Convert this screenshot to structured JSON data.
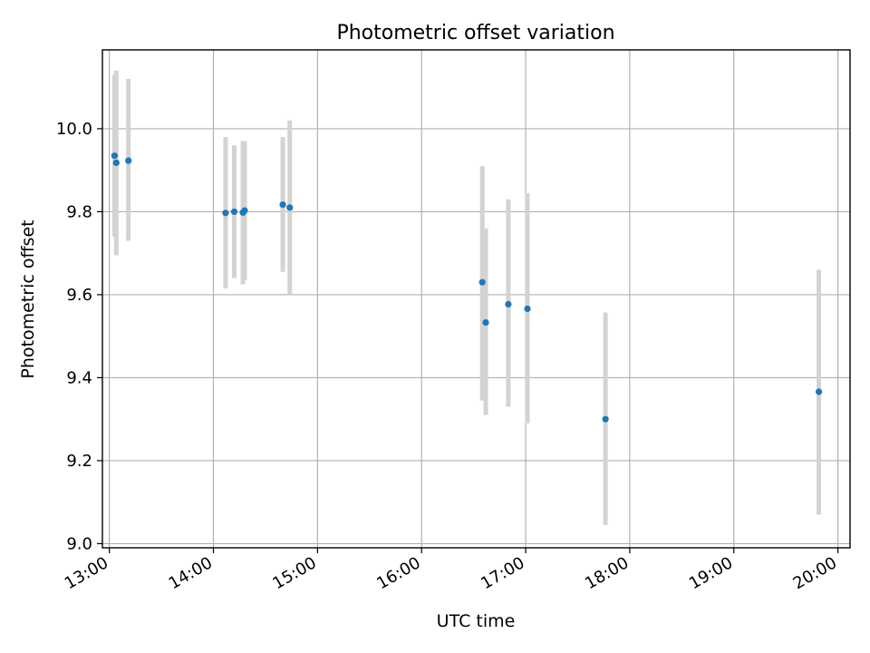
{
  "chart_data": {
    "type": "scatter",
    "title": "Photometric offset variation",
    "xlabel": "UTC time",
    "ylabel": "Photometric offset",
    "x_unit": "hours (UTC)",
    "xlim": [
      "12:56",
      "20:07"
    ],
    "ylim": [
      8.99,
      10.19
    ],
    "grid": true,
    "marker_color": "#1f77b4",
    "errorbar_color": "#d3d3d3",
    "x_ticks": [
      "13:00",
      "14:00",
      "15:00",
      "16:00",
      "17:00",
      "18:00",
      "19:00",
      "20:00"
    ],
    "y_ticks": [
      9.0,
      9.2,
      9.4,
      9.6,
      9.8,
      10.0
    ],
    "y_tick_labels": [
      "9.0",
      "9.2",
      "9.4",
      "9.6",
      "9.8",
      "10.0"
    ],
    "points": [
      {
        "time": "13:03",
        "y": 9.935,
        "ylo": 9.74,
        "yhi": 10.13
      },
      {
        "time": "13:04",
        "y": 9.918,
        "ylo": 9.695,
        "yhi": 10.14
      },
      {
        "time": "13:11",
        "y": 9.923,
        "ylo": 9.73,
        "yhi": 10.12
      },
      {
        "time": "14:07",
        "y": 9.797,
        "ylo": 9.615,
        "yhi": 9.98
      },
      {
        "time": "14:12",
        "y": 9.8,
        "ylo": 9.64,
        "yhi": 9.96
      },
      {
        "time": "14:17",
        "y": 9.798,
        "ylo": 9.625,
        "yhi": 9.97
      },
      {
        "time": "14:18",
        "y": 9.803,
        "ylo": 9.635,
        "yhi": 9.97
      },
      {
        "time": "14:40",
        "y": 9.817,
        "ylo": 9.655,
        "yhi": 9.98
      },
      {
        "time": "14:44",
        "y": 9.81,
        "ylo": 9.6,
        "yhi": 10.02
      },
      {
        "time": "16:35",
        "y": 9.63,
        "ylo": 9.345,
        "yhi": 9.91
      },
      {
        "time": "16:37",
        "y": 9.533,
        "ylo": 9.31,
        "yhi": 9.76
      },
      {
        "time": "16:50",
        "y": 9.577,
        "ylo": 9.33,
        "yhi": 9.83
      },
      {
        "time": "17:01",
        "y": 9.566,
        "ylo": 9.29,
        "yhi": 9.845
      },
      {
        "time": "17:46",
        "y": 9.3,
        "ylo": 9.045,
        "yhi": 9.557
      },
      {
        "time": "19:49",
        "y": 9.366,
        "ylo": 9.07,
        "yhi": 9.66
      }
    ]
  }
}
